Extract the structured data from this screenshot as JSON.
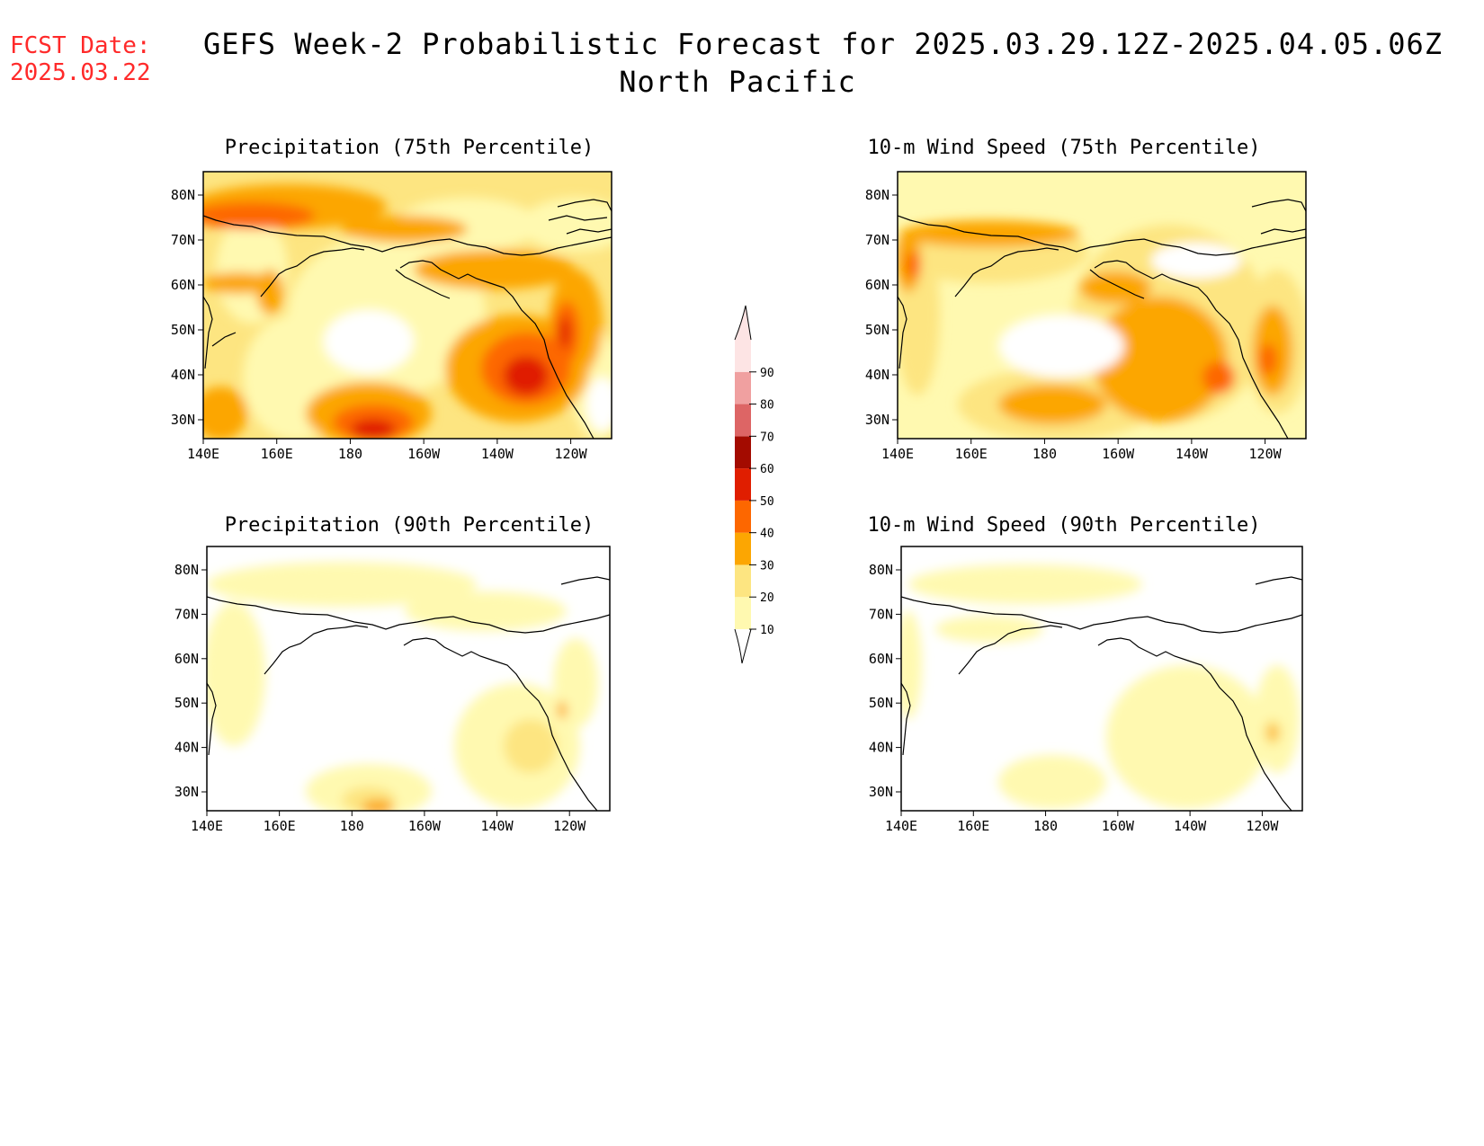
{
  "header": {
    "fcst_label": "FCST Date:",
    "fcst_date": "2025.03.22",
    "title_line1": "GEFS Week-2 Probabilistic Forecast for 2025.03.29.12Z-2025.04.05.06Z",
    "title_line2": "North Pacific"
  },
  "panels": [
    {
      "id": "precip75",
      "title": "Precipitation (75th Percentile)"
    },
    {
      "id": "wind75",
      "title": "10-m Wind Speed (75th Percentile)"
    },
    {
      "id": "precip90",
      "title": "Precipitation (90th Percentile)"
    },
    {
      "id": "wind90",
      "title": "10-m Wind Speed (90th Percentile)"
    }
  ],
  "axes": {
    "lat_ticks": [
      "80N",
      "70N",
      "60N",
      "50N",
      "40N",
      "30N"
    ],
    "lon_ticks": [
      "140E",
      "160E",
      "180",
      "160W",
      "140W",
      "120W"
    ]
  },
  "colorbar": {
    "levels": [
      "10",
      "20",
      "30",
      "40",
      "50",
      "60",
      "70",
      "80",
      "90"
    ],
    "colors": [
      "#fff9b0",
      "#fde581",
      "#fca602",
      "#fd6700",
      "#e01e00",
      "#a30b00",
      "#dd6565",
      "#f0a0a0",
      "#fde4e4"
    ]
  }
}
